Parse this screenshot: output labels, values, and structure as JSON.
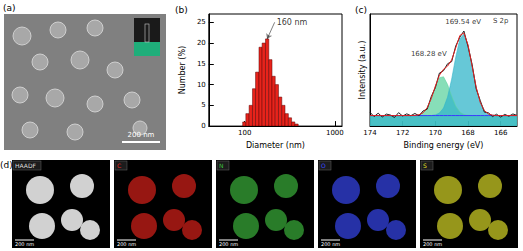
{
  "chart_data": [
    {
      "type": "histogram",
      "title": "(b)",
      "x_label": "Diameter (nm)",
      "y_label": "Number (%)",
      "bins": [
        95,
        103,
        112,
        122,
        132,
        144,
        156,
        170,
        185,
        201,
        218,
        237,
        258,
        280,
        305,
        331,
        360,
        392
      ],
      "values": [
        1,
        3,
        5,
        9,
        13,
        19,
        20,
        21,
        16,
        12,
        10,
        7,
        5,
        3,
        2,
        1,
        0.5
      ],
      "color": "#e8231b",
      "log": "x",
      "xlim": [
        40,
        1200
      ],
      "xticks": [
        100,
        1000
      ],
      "ylim": [
        0,
        27
      ],
      "yticks": [
        0,
        5,
        10,
        15,
        20,
        25
      ],
      "grid": false,
      "annotations": [
        {
          "text": "160 nm",
          "x": 215,
          "y": 25
        }
      ]
    },
    {
      "type": "line",
      "title": "(c)",
      "x_label": "Binding energy (eV)",
      "y_label": "Intensity (a.u.)",
      "x": [
        174,
        173.75,
        173.5,
        173.25,
        173,
        172.75,
        172.5,
        172.25,
        172,
        171.75,
        171.5,
        171.25,
        171,
        170.75,
        170.5,
        170.25,
        170,
        169.75,
        169.5,
        169.25,
        169,
        168.75,
        168.5,
        168.25,
        168,
        167.75,
        167.5,
        167.25,
        167,
        166.75,
        166.5,
        166.25,
        166,
        165.75,
        165.5,
        165.25,
        165
      ],
      "series": [
        {
          "type": "area",
          "color": "#5fd3a0",
          "values": [
            8,
            8,
            8,
            8,
            8,
            8,
            8,
            8,
            8,
            8,
            8,
            8.1,
            8.6,
            10.1,
            13.9,
            20.9,
            29.8,
            36.7,
            37.4,
            31.5,
            22.6,
            15.1,
            10.7,
            8.8,
            8.2,
            8,
            8,
            8,
            8,
            8,
            8,
            8,
            8,
            8,
            8,
            8,
            8
          ]
        },
        {
          "type": "area",
          "color": "#33b5c9",
          "values": [
            8,
            8,
            8,
            8,
            8,
            8,
            8,
            8,
            8,
            8,
            8,
            8,
            8,
            8,
            8,
            8,
            8.5,
            9.9,
            13.7,
            22.0,
            35.6,
            52.3,
            66.0,
            69.8,
            61.4,
            45.6,
            29.5,
            18.0,
            11.8,
            9.2,
            8.3,
            8,
            8,
            8,
            8,
            8,
            8
          ]
        },
        {
          "type": "line",
          "color": "#3a3aff",
          "line_style": "solid",
          "values": [
            8,
            8,
            8,
            8,
            8,
            8,
            8,
            8,
            8,
            8,
            8,
            8,
            8,
            8,
            8,
            8,
            8,
            8,
            8,
            8,
            8,
            8,
            8,
            8,
            8,
            8,
            8,
            8,
            8,
            8,
            8,
            8,
            8,
            8,
            8,
            8,
            8
          ]
        },
        {
          "type": "line",
          "color": "#222222",
          "line_style": "solid",
          "values": [
            10.5,
            7.2,
            9.8,
            6.9,
            9.1,
            8.4,
            6.5,
            10.2,
            7.6,
            9.3,
            7.9,
            9.6,
            7.8,
            11.5,
            12.8,
            22.4,
            29.1,
            40.2,
            42.0,
            47.3,
            48.9,
            60.8,
            67.4,
            72.1,
            60.3,
            46.9,
            28.2,
            19.4,
            10.6,
            10.1,
            7.2,
            9.0,
            6.8,
            8.9,
            7.5,
            9.2,
            8.1
          ]
        },
        {
          "type": "line",
          "color": "#e02020",
          "line_style": "solid",
          "values": [
            8,
            8,
            8,
            8,
            8,
            8,
            8,
            8,
            8,
            8,
            8,
            8.1,
            8.6,
            10.1,
            13.9,
            20.9,
            30.3,
            38.6,
            43.1,
            45.5,
            50.2,
            59.4,
            68.7,
            70.6,
            61.6,
            45.6,
            29.5,
            18.0,
            11.8,
            9.2,
            8.3,
            8,
            8,
            8,
            8,
            8,
            8
          ]
        }
      ],
      "xlim": [
        174,
        165
      ],
      "xticks": [
        174,
        172,
        170,
        168,
        166
      ],
      "ylim": [
        0,
        85
      ],
      "tick_labels": "x",
      "grid": false,
      "annotations": [
        {
          "text": "S 2p",
          "x": 166,
          "y": 80
        },
        {
          "text": "169.54 eV",
          "x": 168.3,
          "y": 79
        },
        {
          "text": "168.28 eV",
          "x": 170.4,
          "y": 55
        }
      ]
    }
  ],
  "images": [
    {
      "title": "(a)",
      "scale_bar": "200 nm"
    },
    {
      "title": "(d)",
      "scale_bar": "200 nm",
      "maps": [
        {
          "label": "HAADF",
          "color": "#dcdcdc"
        },
        {
          "label": "C",
          "color": "#e8231b"
        },
        {
          "label": "N",
          "color": "#3fbf3f"
        },
        {
          "label": "O",
          "color": "#3b4bff"
        },
        {
          "label": "S",
          "color": "#e6e629"
        }
      ]
    }
  ]
}
